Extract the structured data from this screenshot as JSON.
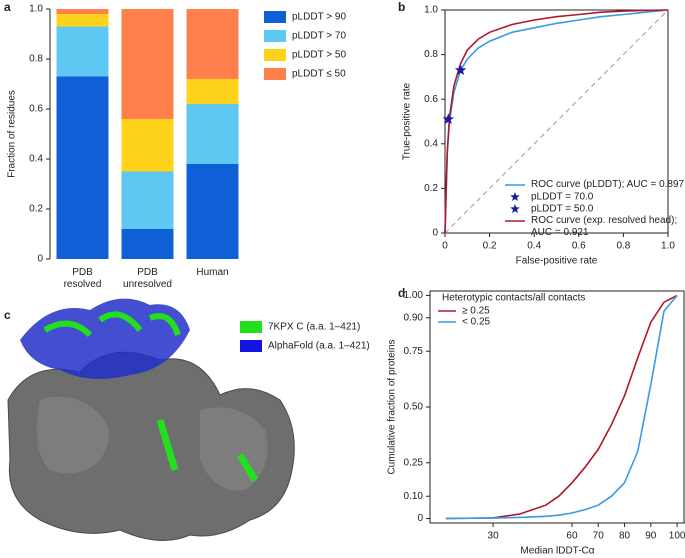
{
  "chart_data": [
    {
      "type": "bar",
      "stacked": true,
      "panel": "a",
      "ylabel": "Fraction of residues",
      "categories": [
        "PDB\nresolved",
        "PDB\nunresolved",
        "Human"
      ],
      "series": [
        {
          "name": "pLDDT > 90",
          "color": "#0f5fd6",
          "values": [
            0.73,
            0.12,
            0.38
          ]
        },
        {
          "name": "pLDDT > 70",
          "color": "#5ec8f2",
          "values": [
            0.2,
            0.23,
            0.24
          ]
        },
        {
          "name": "pLDDT > 50",
          "color": "#ffd21c",
          "values": [
            0.05,
            0.21,
            0.1
          ]
        },
        {
          "name": "pLDDT ≤ 50",
          "color": "#ff7f4d",
          "values": [
            0.02,
            0.44,
            0.28
          ]
        }
      ],
      "ylim": [
        0,
        1
      ],
      "yticks": [
        0,
        0.2,
        0.4,
        0.6,
        0.8,
        {
          "value": 1,
          "label": "1.0"
        }
      ],
      "legend": "right"
    },
    {
      "type": "line",
      "panel": "b",
      "xlabel": "False-positive rate",
      "ylabel": "True-positive rate",
      "x": [
        0,
        0.01,
        0.02,
        0.04,
        0.07,
        0.1,
        0.15,
        0.2,
        0.3,
        0.4,
        0.5,
        0.6,
        0.7,
        0.8,
        0.9,
        1
      ],
      "series": [
        {
          "name": "ROC curve (pLDDT); AUC = 0.897",
          "color": "#3a9ae8",
          "values": [
            0,
            0.35,
            0.5,
            0.63,
            0.73,
            0.78,
            0.83,
            0.86,
            0.9,
            0.92,
            0.94,
            0.955,
            0.97,
            0.98,
            0.99,
            1
          ]
        },
        {
          "name": "ROC curve (exp. resolved head);\nAUC = 0.921",
          "color": "#b2182b",
          "values": [
            0,
            0.36,
            0.52,
            0.66,
            0.76,
            0.82,
            0.87,
            0.9,
            0.935,
            0.955,
            0.97,
            0.98,
            0.99,
            0.995,
            0.998,
            1
          ]
        }
      ],
      "points": [
        {
          "name": "pLDDT = 70.0",
          "color": "#1a1a9c",
          "x": 0.07,
          "y": 0.73
        },
        {
          "name": "pLDDT = 50.0",
          "color": "#1a1a9c",
          "x": 0.015,
          "y": 0.51
        }
      ],
      "xlim": [
        0,
        1
      ],
      "ylim": [
        0,
        1
      ],
      "xticks": [
        0,
        0.2,
        0.4,
        0.6,
        0.8,
        {
          "value": 1,
          "label": "1.0"
        }
      ],
      "yticks": [
        0,
        0.2,
        0.4,
        0.6,
        0.8,
        {
          "value": 1,
          "label": "1.0"
        }
      ],
      "legend": "lower right"
    },
    {
      "type": "image",
      "panel": "c",
      "legend": [
        {
          "name": "7KPX C (a.a. 1–421)",
          "color": "#22e01e"
        },
        {
          "name": "AlphaFold (a.a. 1–421)",
          "color": "#1414e0"
        }
      ]
    },
    {
      "type": "line",
      "panel": "d",
      "xlabel": "Median lDDT-Cα",
      "ylabel": "Cumulative fraction of proteins",
      "legend_title": "Heterotypic contacts/all contacts",
      "x": [
        12,
        30,
        40,
        50,
        55,
        60,
        65,
        70,
        75,
        80,
        85,
        90,
        95,
        100
      ],
      "series": [
        {
          "name": "≥ 0.25",
          "color": "#b2182b",
          "values": [
            0,
            0.003,
            0.02,
            0.06,
            0.1,
            0.16,
            0.23,
            0.31,
            0.42,
            0.55,
            0.72,
            0.88,
            0.97,
            1
          ]
        },
        {
          "name": "< 0.25",
          "color": "#3a9ae8",
          "values": [
            0,
            0.002,
            0.005,
            0.01,
            0.015,
            0.025,
            0.04,
            0.06,
            0.1,
            0.16,
            0.3,
            0.6,
            0.93,
            1
          ]
        }
      ],
      "xlim": [
        6,
        103
      ],
      "ylim": [
        -0.02,
        1.02
      ],
      "xticks": [
        30,
        60,
        70,
        80,
        90,
        100
      ],
      "yticks": [
        0,
        {
          "value": 0.1,
          "label": "0.10"
        },
        {
          "value": 0.25,
          "label": "0.25"
        },
        {
          "value": 0.5,
          "label": "0.50"
        },
        {
          "value": 0.75,
          "label": "0.75"
        },
        {
          "value": 0.9,
          "label": "0.90"
        },
        {
          "value": 1,
          "label": "1.00"
        }
      ],
      "legend": "upper left"
    }
  ]
}
